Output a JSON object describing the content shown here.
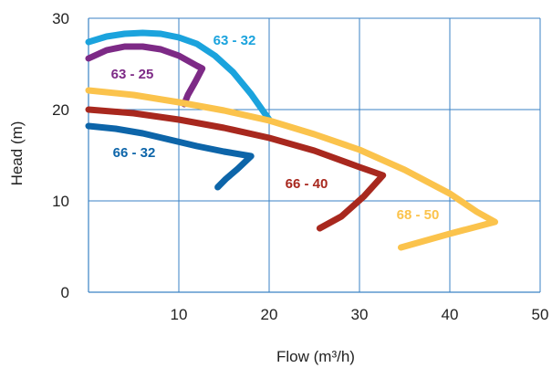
{
  "chart_data": {
    "type": "line",
    "title": "",
    "xlabel": "Flow (m³/h)",
    "ylabel": "Head (m)",
    "xlim": [
      0,
      50
    ],
    "ylim": [
      0,
      30
    ],
    "xticks": [
      "10",
      "20",
      "30",
      "40",
      "50"
    ],
    "yticks": [
      "0",
      "10",
      "20",
      "30"
    ],
    "grid": true,
    "legend": "labels on curves",
    "series": [
      {
        "name": "63 - 32",
        "color": "#1ba3dd",
        "x": [
          0,
          2,
          4,
          6,
          8,
          10,
          12,
          14,
          16,
          18,
          20
        ],
        "y": [
          27.4,
          28.0,
          28.3,
          28.4,
          28.3,
          27.9,
          27.2,
          25.9,
          24.1,
          21.7,
          18.9
        ]
      },
      {
        "name": "63 - 25",
        "color": "#7d2a86",
        "x": [
          0,
          2,
          4,
          6,
          8,
          10,
          12,
          12.6,
          11.8,
          11.0,
          10.6
        ],
        "y": [
          25.6,
          26.5,
          26.9,
          26.9,
          26.6,
          25.9,
          24.8,
          24.5,
          23.0,
          21.6,
          20.6
        ]
      },
      {
        "name": "68 - 50",
        "color": "#fbc34c",
        "x": [
          0,
          5,
          10,
          15,
          20,
          25,
          30,
          35,
          40,
          43,
          45,
          40,
          34.6
        ],
        "y": [
          22.1,
          21.6,
          20.8,
          19.9,
          18.8,
          17.3,
          15.6,
          13.4,
          10.8,
          8.8,
          7.7,
          6.4,
          4.9
        ]
      },
      {
        "name": "66 - 40",
        "color": "#a8281e",
        "x": [
          0,
          5,
          10,
          15,
          20,
          25,
          30,
          32.6,
          30.5,
          28,
          25.6
        ],
        "y": [
          20.0,
          19.6,
          18.9,
          18.0,
          16.9,
          15.5,
          13.7,
          12.8,
          10.5,
          8.3,
          7.0
        ]
      },
      {
        "name": "66 - 32",
        "color": "#0d65a9",
        "x": [
          0,
          3,
          6,
          9,
          12,
          15,
          18,
          16.5,
          15.2,
          14.3
        ],
        "y": [
          18.2,
          17.9,
          17.4,
          16.7,
          16.0,
          15.4,
          14.9,
          13.5,
          12.4,
          11.5
        ]
      }
    ]
  }
}
